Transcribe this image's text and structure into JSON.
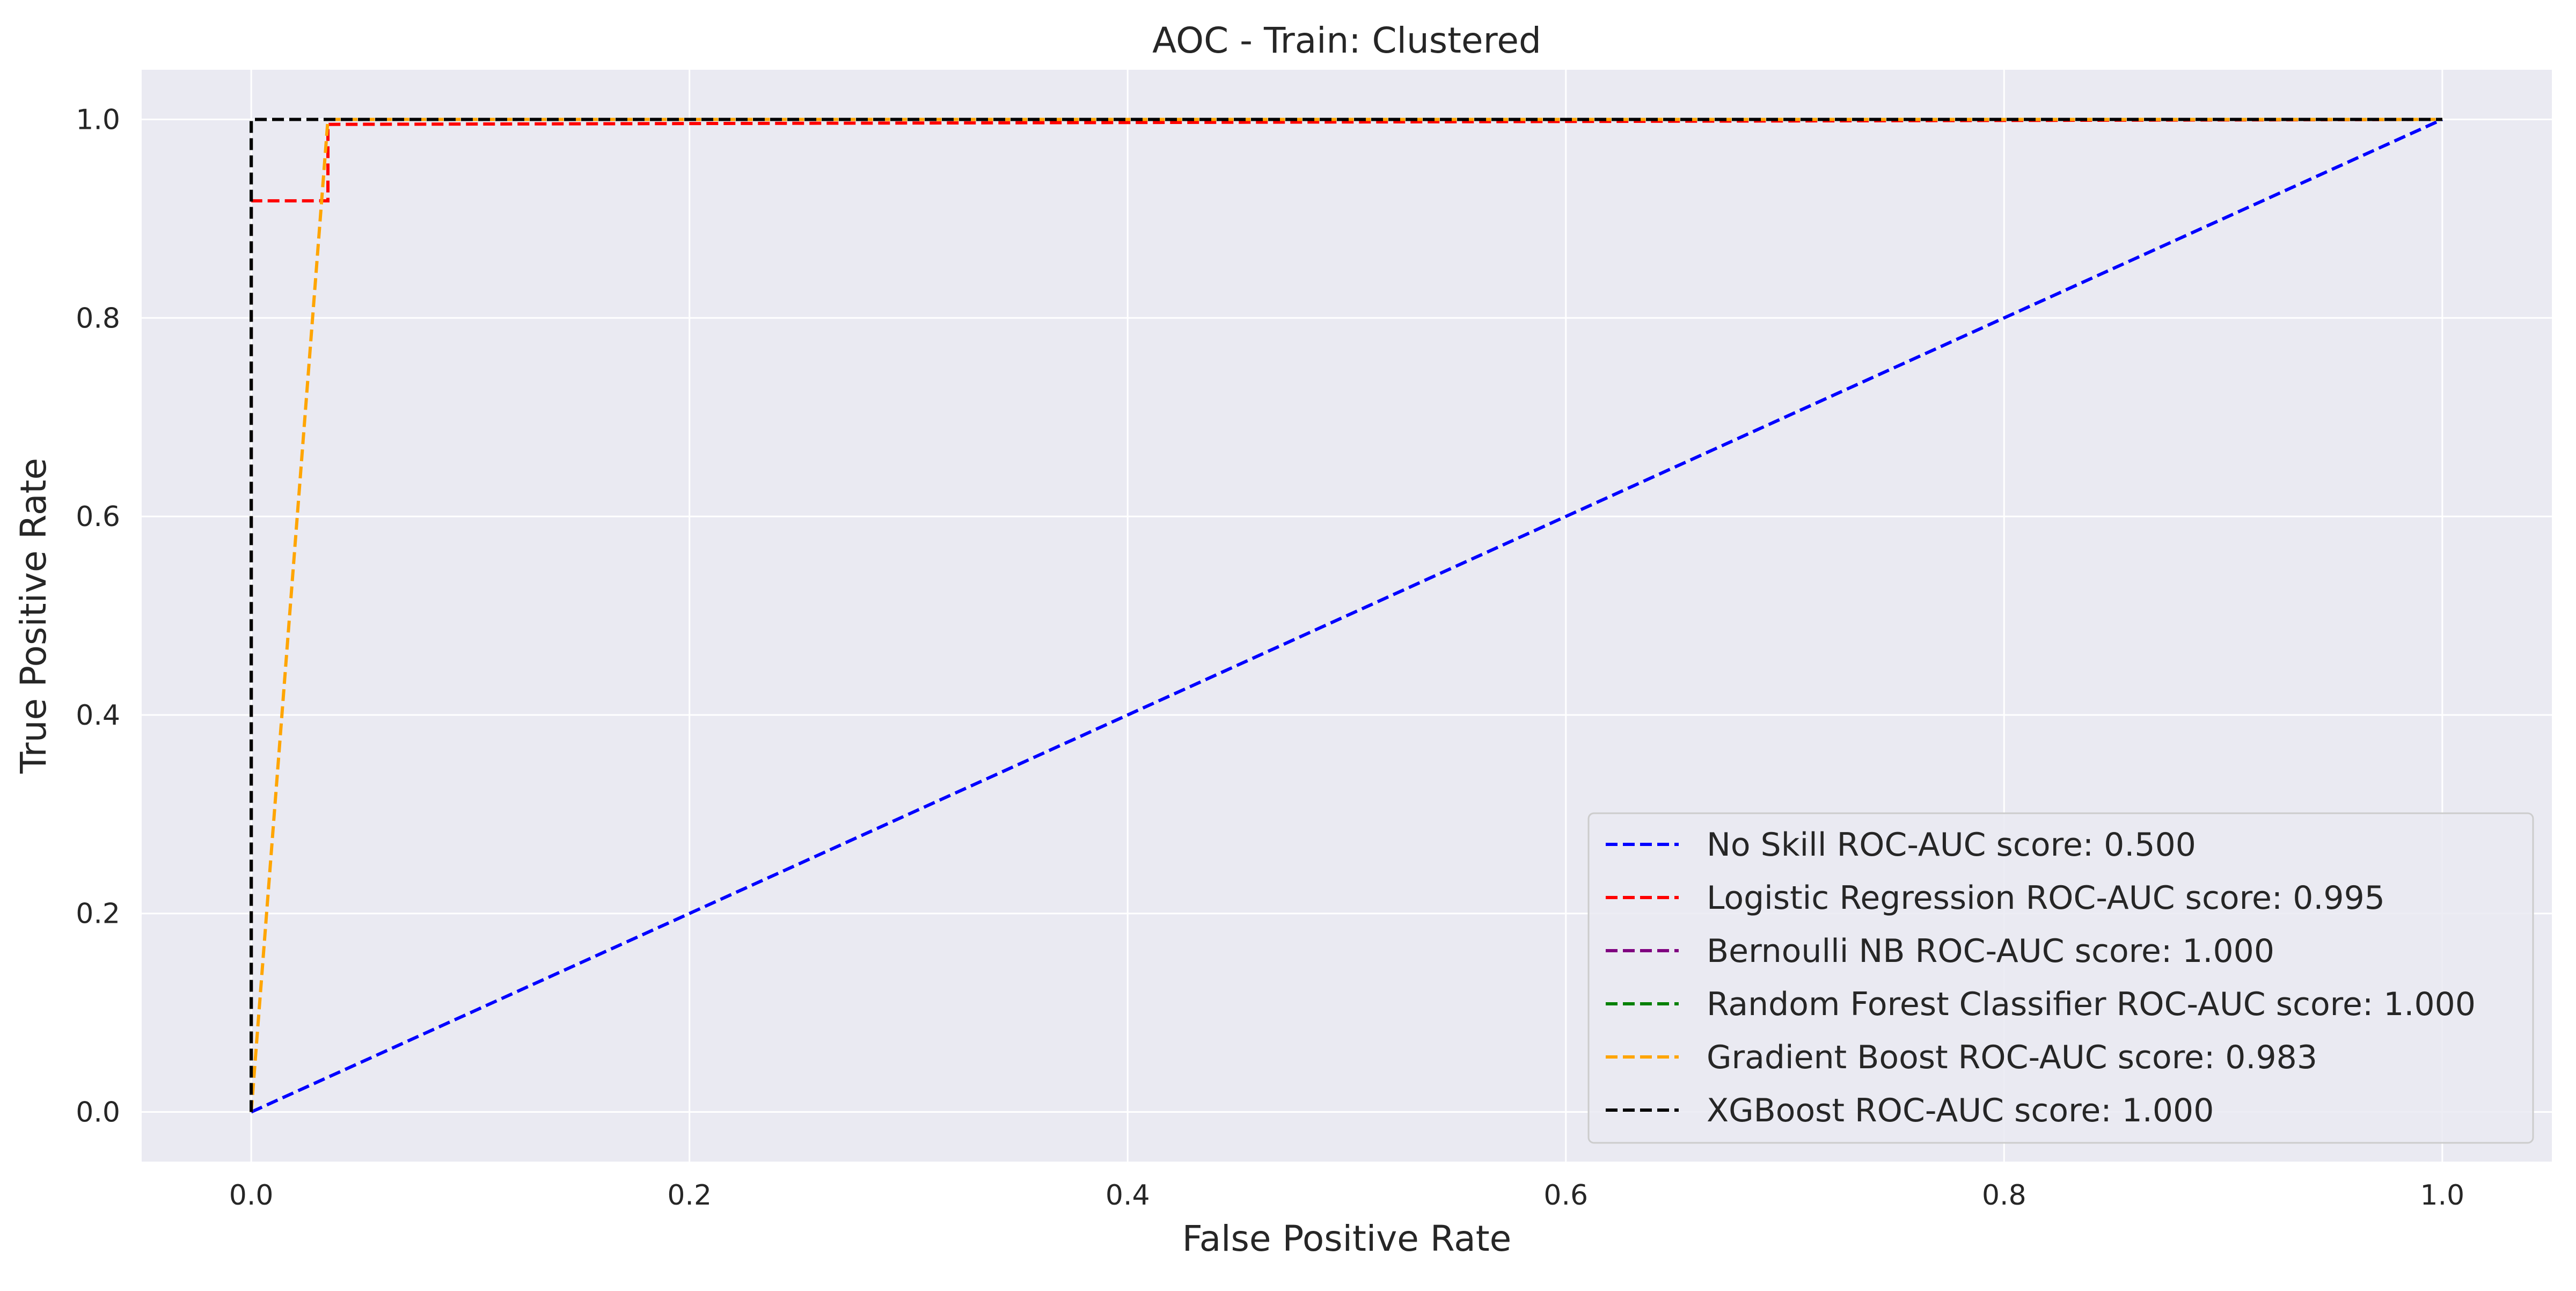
{
  "chart_data": {
    "type": "line",
    "title": "AOC - Train: Clustered",
    "xlabel": "False Positive Rate",
    "ylabel": "True Positive Rate",
    "xlim": [
      -0.05,
      1.05
    ],
    "ylim": [
      -0.05,
      1.05
    ],
    "xticks": [
      0.0,
      0.2,
      0.4,
      0.6,
      0.8,
      1.0
    ],
    "xtick_labels": [
      "0.0",
      "0.2",
      "0.4",
      "0.6",
      "0.8",
      "1.0"
    ],
    "yticks": [
      0.0,
      0.2,
      0.4,
      0.6,
      0.8,
      1.0
    ],
    "ytick_labels": [
      "0.0",
      "0.2",
      "0.4",
      "0.6",
      "0.8",
      "1.0"
    ],
    "grid": true,
    "legend_position": "lower-right",
    "background": "#eaeaf2",
    "series": [
      {
        "name": "No Skill ROC-AUC score: 0.500",
        "color": "#0000ff",
        "dashed": true,
        "x": [
          0.0,
          1.0
        ],
        "y": [
          0.0,
          1.0
        ]
      },
      {
        "name": "Logistic Regression ROC-AUC score: 0.995",
        "color": "#ff0000",
        "dashed": true,
        "x": [
          0.0,
          0.0,
          0.035,
          0.035,
          1.0
        ],
        "y": [
          0.0,
          0.918,
          0.918,
          0.995,
          1.0
        ]
      },
      {
        "name": "Bernoulli NB ROC-AUC score: 1.000",
        "color": "#800080",
        "dashed": true,
        "x": [
          0.0,
          0.0,
          1.0
        ],
        "y": [
          0.0,
          1.0,
          1.0
        ]
      },
      {
        "name": "Random Forest Classifier ROC-AUC score: 1.000",
        "color": "#008000",
        "dashed": true,
        "x": [
          0.0,
          0.0,
          1.0
        ],
        "y": [
          0.0,
          1.0,
          1.0
        ]
      },
      {
        "name": "Gradient Boost ROC-AUC score: 0.983",
        "color": "#ffa500",
        "dashed": true,
        "x": [
          0.0,
          0.035,
          1.0
        ],
        "y": [
          0.0,
          1.0,
          1.0
        ]
      },
      {
        "name": "XGBoost ROC-AUC score: 1.000",
        "color": "#000000",
        "dashed": true,
        "x": [
          0.0,
          0.0,
          1.0
        ],
        "y": [
          0.0,
          1.0,
          1.0
        ]
      }
    ]
  }
}
